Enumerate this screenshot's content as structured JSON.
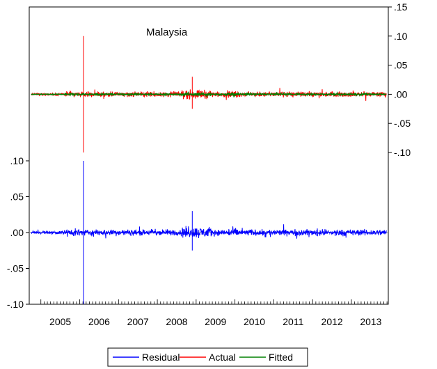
{
  "chart_data": {
    "type": "line",
    "title": "Malaysia",
    "x_tick_labels": [
      "2005",
      "2006",
      "2007",
      "2008",
      "2009",
      "2010",
      "2011",
      "2012",
      "2013"
    ],
    "right_axis": {
      "ticks": [
        ".15",
        ".10",
        ".05",
        ".00",
        "-.05",
        "-.10"
      ],
      "tick_values": [
        0.15,
        0.1,
        0.05,
        0.0,
        -0.05,
        -0.1
      ],
      "series": [
        "Actual",
        "Fitted"
      ]
    },
    "left_axis": {
      "ticks": [
        ".10",
        ".05",
        ".00",
        "-.05",
        "-.10"
      ],
      "tick_values": [
        0.1,
        0.05,
        0.0,
        -0.05,
        -0.1
      ],
      "series": [
        "Residual"
      ]
    },
    "series": [
      {
        "name": "Residual",
        "color": "#0000ff",
        "axis": "left",
        "notable_points": [
          {
            "x": 2006.1,
            "max": 0.1,
            "min": -0.1
          },
          {
            "x": 2008.9,
            "max": 0.03,
            "min": -0.025
          }
        ],
        "typical_amplitude": 0.006
      },
      {
        "name": "Actual",
        "color": "#ff0000",
        "axis": "right",
        "notable_points": [
          {
            "x": 2006.1,
            "max": 0.1,
            "min": -0.1
          },
          {
            "x": 2008.9,
            "max": 0.03,
            "min": -0.025
          }
        ],
        "typical_amplitude": 0.006
      },
      {
        "name": "Fitted",
        "color": "#008000",
        "axis": "right",
        "typical_amplitude": 0.002
      }
    ],
    "legend": {
      "items": [
        "Residual",
        "Actual",
        "Fitted"
      ],
      "placement": "bottom"
    },
    "grid": false
  }
}
